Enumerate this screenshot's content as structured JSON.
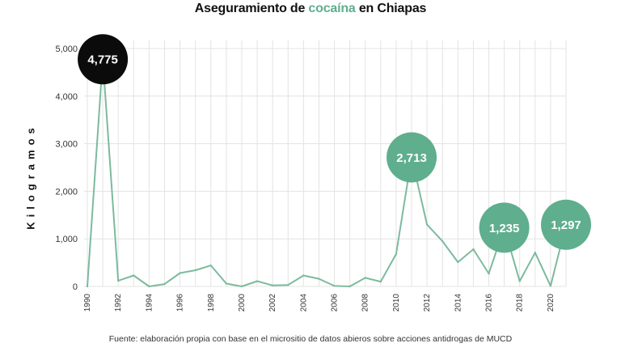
{
  "title": {
    "prefix": "Aseguramiento de ",
    "highlight": "cocaína",
    "suffix": " en Chiapas"
  },
  "source": "Fuente: elaboración propia con base en el micrositio de datos abieros sobre acciones antidrogas de MUCD",
  "colors": {
    "line": "#7dba9e",
    "bubble_green": "#5fae8e",
    "bubble_dark": "#0b0b0b",
    "grid": "#e3e3e3",
    "title_accent": "#5fae8e"
  },
  "chart_data": {
    "type": "line",
    "title": "Aseguramiento de cocaína en Chiapas",
    "xlabel": "",
    "ylabel": "Kilogramos",
    "ylim": [
      0,
      5000
    ],
    "xlim": [
      1990,
      2021
    ],
    "y_ticks": [
      0,
      1000,
      2000,
      3000,
      4000,
      5000
    ],
    "y_tick_labels": [
      "0",
      "1,000",
      "2,000",
      "3,000",
      "4,000",
      "5,000"
    ],
    "x_ticks": [
      1990,
      1992,
      1994,
      1996,
      1998,
      2000,
      2002,
      2004,
      2006,
      2008,
      2010,
      2012,
      2014,
      2016,
      2018,
      2020
    ],
    "grid": true,
    "series": [
      {
        "x": [
          1990,
          1991,
          1992,
          1993,
          1994,
          1995,
          1996,
          1997,
          1998,
          1999,
          2000,
          2001,
          2002,
          2003,
          2004,
          2005,
          2006,
          2007,
          2008,
          2009,
          2010,
          2011,
          2012,
          2013,
          2014,
          2015,
          2016,
          2017,
          2018,
          2019,
          2020,
          2021
        ],
        "values": [
          0,
          4775,
          120,
          230,
          0,
          50,
          280,
          340,
          440,
          60,
          0,
          110,
          20,
          30,
          230,
          160,
          10,
          0,
          180,
          100,
          680,
          2713,
          1300,
          950,
          510,
          780,
          270,
          1235,
          110,
          710,
          10,
          1297
        ]
      }
    ],
    "annotations": [
      {
        "x": 1991,
        "y": 4775,
        "label": "4,775",
        "style": "dark"
      },
      {
        "x": 2011,
        "y": 2713,
        "label": "2,713",
        "style": "green"
      },
      {
        "x": 2017,
        "y": 1235,
        "label": "1,235",
        "style": "green"
      },
      {
        "x": 2021,
        "y": 1297,
        "label": "1,297",
        "style": "green"
      }
    ]
  }
}
